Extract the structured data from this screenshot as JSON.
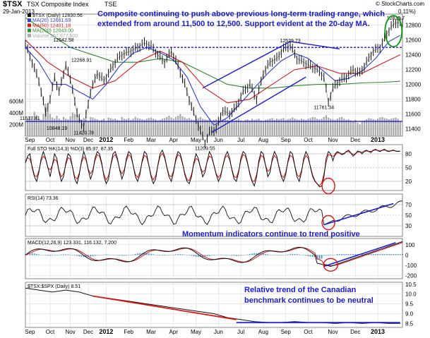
{
  "header": {
    "symbol": "$TSX",
    "name": "TSX Composite Index",
    "exchange": "TSE",
    "date": "29-Jan-2013",
    "change_frag": "0.11%)",
    "source": "© StockCharts.com"
  },
  "annotations": {
    "top_line1": "Composite continuing to push above previous long-term trading range, which",
    "top_line2": "extended from around 11,500 to 12,500.   Support evident at the 20-day MA.",
    "momentum": "Momentum indicators continue to trend positive",
    "relative_line1": "Relative trend of the Canadian",
    "relative_line2": "benchmark continues to be neutral"
  },
  "colors": {
    "price": "#111111",
    "ma20": "#2b3fcf",
    "ma50": "#d41919",
    "ma200": "#2c8a2c",
    "volume": "#a9a9a9",
    "annotation_text": "#1a1ad6",
    "support_line": "#1a1ad6",
    "trend_red": "#e01111",
    "circle_red": "#e01111",
    "circle_green": "#1c9a1c",
    "macd_hist": "#2f7fc8",
    "grid": "#d9d9d9"
  },
  "chart_data": [
    {
      "type": "line",
      "panel": "price",
      "legend": [
        {
          "label": "$TSX (Daily) 12830.56",
          "color_key": "price"
        },
        {
          "label": "MA(20) 12661.69",
          "color_key": "ma20"
        },
        {
          "label": "MA(50) 12401.18",
          "color_key": "ma50"
        },
        {
          "label": "MA(200) 12043.00",
          "color_key": "ma200"
        },
        {
          "label": "Volume 257,977,600",
          "color_key": "volume"
        }
      ],
      "y_ticks": [
        11400,
        11600,
        11800,
        12000,
        12200,
        12400,
        12600,
        12800
      ],
      "ylim": [
        11300,
        12950
      ],
      "volume_ticks": [
        "200M",
        "400M",
        "600M"
      ],
      "volume_ylim": [
        0,
        700
      ],
      "x_labels": [
        "Sep",
        "Oct",
        "Nov",
        "Dec",
        "2012",
        "Feb",
        "Mar",
        "Apr",
        "May",
        "Jun",
        "Jul",
        "Aug",
        "Sep",
        "Oct",
        "Nov",
        "Dec",
        "2013"
      ],
      "x_label_pos": [
        2,
        11,
        20,
        28,
        36,
        46,
        56,
        66,
        76,
        86,
        96,
        106,
        116,
        126,
        137,
        147,
        157
      ],
      "bold_labels": [
        "2012",
        "2013"
      ],
      "x_range": [
        0,
        168
      ],
      "price": [
        [
          0,
          12542
        ],
        [
          3,
          12300
        ],
        [
          6,
          12050
        ],
        [
          9,
          11617
        ],
        [
          11,
          11800
        ],
        [
          13,
          12100
        ],
        [
          15,
          11900
        ],
        [
          18,
          12268
        ],
        [
          21,
          11950
        ],
        [
          23,
          11600
        ],
        [
          26,
          11420
        ],
        [
          29,
          11900
        ],
        [
          32,
          12150
        ],
        [
          35,
          12050
        ],
        [
          38,
          12200
        ],
        [
          41,
          12350
        ],
        [
          44,
          12420
        ],
        [
          47,
          12450
        ],
        [
          50,
          12500
        ],
        [
          53,
          12560
        ],
        [
          56,
          12520
        ],
        [
          59,
          12400
        ],
        [
          62,
          12300
        ],
        [
          65,
          12450
        ],
        [
          68,
          12250
        ],
        [
          71,
          12000
        ],
        [
          74,
          11700
        ],
        [
          77,
          11450
        ],
        [
          80,
          11209
        ],
        [
          82,
          11350
        ],
        [
          85,
          11400
        ],
        [
          88,
          11650
        ],
        [
          91,
          11600
        ],
        [
          94,
          11700
        ],
        [
          97,
          11900
        ],
        [
          100,
          12000
        ],
        [
          103,
          11800
        ],
        [
          106,
          12150
        ],
        [
          109,
          12300
        ],
        [
          112,
          12350
        ],
        [
          115,
          12480
        ],
        [
          118,
          12529
        ],
        [
          121,
          12350
        ],
        [
          124,
          12300
        ],
        [
          127,
          12250
        ],
        [
          130,
          12200
        ],
        [
          133,
          12100
        ],
        [
          135,
          11761
        ],
        [
          137,
          11950
        ],
        [
          140,
          12050
        ],
        [
          143,
          12100
        ],
        [
          146,
          12200
        ],
        [
          149,
          12150
        ],
        [
          152,
          12300
        ],
        [
          155,
          12450
        ],
        [
          158,
          12500
        ],
        [
          161,
          12680
        ],
        [
          163,
          12780
        ],
        [
          165,
          12835
        ],
        [
          167,
          12830
        ]
      ],
      "ma20": [
        [
          0,
          12500
        ],
        [
          6,
          12300
        ],
        [
          12,
          12000
        ],
        [
          18,
          12000
        ],
        [
          24,
          11900
        ],
        [
          30,
          11800
        ],
        [
          36,
          12000
        ],
        [
          42,
          12250
        ],
        [
          48,
          12420
        ],
        [
          54,
          12500
        ],
        [
          60,
          12430
        ],
        [
          66,
          12330
        ],
        [
          72,
          12100
        ],
        [
          78,
          11700
        ],
        [
          84,
          11450
        ],
        [
          90,
          11550
        ],
        [
          96,
          11750
        ],
        [
          102,
          11950
        ],
        [
          108,
          12150
        ],
        [
          114,
          12320
        ],
        [
          120,
          12420
        ],
        [
          126,
          12350
        ],
        [
          132,
          12200
        ],
        [
          138,
          12050
        ],
        [
          144,
          12080
        ],
        [
          150,
          12180
        ],
        [
          156,
          12350
        ],
        [
          162,
          12580
        ],
        [
          167,
          12662
        ]
      ],
      "ma50": [
        [
          0,
          12600
        ],
        [
          10,
          12300
        ],
        [
          20,
          12100
        ],
        [
          30,
          11950
        ],
        [
          40,
          12050
        ],
        [
          50,
          12300
        ],
        [
          60,
          12450
        ],
        [
          70,
          12300
        ],
        [
          80,
          11950
        ],
        [
          90,
          11750
        ],
        [
          100,
          11800
        ],
        [
          110,
          12000
        ],
        [
          120,
          12200
        ],
        [
          130,
          12250
        ],
        [
          140,
          12150
        ],
        [
          150,
          12150
        ],
        [
          160,
          12300
        ],
        [
          167,
          12401
        ]
      ],
      "ma200": [
        [
          0,
          12900
        ],
        [
          10,
          12700
        ],
        [
          20,
          12500
        ],
        [
          30,
          12400
        ],
        [
          40,
          12300
        ],
        [
          50,
          12300
        ],
        [
          60,
          12350
        ],
        [
          70,
          12300
        ],
        [
          80,
          12150
        ],
        [
          90,
          12000
        ],
        [
          100,
          11950
        ],
        [
          110,
          11950
        ],
        [
          120,
          11980
        ],
        [
          130,
          12000
        ],
        [
          140,
          12000
        ],
        [
          150,
          12020
        ],
        [
          160,
          12030
        ],
        [
          167,
          12043
        ]
      ],
      "volume": [
        260,
        300,
        340,
        310,
        420,
        360,
        300,
        280,
        380,
        560,
        420,
        380,
        320,
        300,
        350,
        300,
        280,
        330,
        300,
        290,
        340,
        410,
        380,
        360,
        300,
        280,
        310,
        290,
        260,
        330,
        320,
        300,
        290,
        270,
        280,
        300,
        250,
        320,
        310,
        290,
        300,
        280,
        270,
        330,
        300,
        290,
        310,
        280,
        300,
        330,
        310,
        300,
        290,
        280,
        300,
        310,
        320,
        300,
        290,
        270,
        280,
        300,
        310,
        330,
        350,
        320,
        300,
        330,
        350,
        380,
        340,
        320,
        300,
        310,
        290,
        280,
        300,
        310,
        330,
        300,
        290,
        280,
        300,
        260,
        280,
        290,
        270,
        260,
        290,
        300,
        280,
        270,
        290,
        260,
        280,
        300,
        270,
        260,
        280,
        290,
        270,
        300,
        280,
        290,
        300,
        270,
        260,
        280,
        290,
        300,
        310,
        280,
        300,
        290,
        300,
        310,
        280,
        290,
        300,
        320,
        300,
        290,
        280,
        300,
        290,
        280,
        300,
        310,
        330,
        320,
        300,
        290,
        300,
        330,
        360,
        320,
        300,
        290,
        280,
        300,
        320,
        330,
        300,
        280,
        290,
        270,
        260,
        280,
        230,
        200,
        250,
        270,
        290,
        310,
        300,
        290,
        280,
        300,
        320,
        330,
        310,
        300,
        290,
        300,
        310,
        320,
        300,
        258
      ],
      "point_labels": [
        {
          "x": 17,
          "y": 12542,
          "text": "12542.58"
        },
        {
          "x": 25,
          "y": 12268,
          "text": "12268.91"
        },
        {
          "x": 2,
          "y": 11617,
          "text": "11617.81"
        },
        {
          "x": 26,
          "y": 11420,
          "text": "11420.78"
        },
        {
          "x": 80,
          "y": 11209,
          "text": "11209.55"
        },
        {
          "x": 118,
          "y": 12529,
          "text": "12529.73"
        },
        {
          "x": 133,
          "y": 11761,
          "text": "11761.34"
        },
        {
          "x": 165,
          "y": 12835,
          "text": "12835.7"
        }
      ],
      "volume_label": {
        "x": 14,
        "text": "10848.19"
      },
      "support_line_level": 12500,
      "resistance_line_level": 11500,
      "channel_upper": [
        [
          79,
          11950
        ],
        [
          118,
          12580
        ],
        [
          140,
          12480
        ]
      ],
      "channel_lower": [
        [
          83,
          11350
        ],
        [
          125,
          12100
        ]
      ]
    },
    {
      "type": "line",
      "panel": "stochastic",
      "legend": "Full STO %K(14,3) %D(3) 85.97, 87.35",
      "y_ticks": [
        20,
        50,
        80
      ],
      "ylim": [
        0,
        100
      ],
      "x_labels": [],
      "k_values": [
        60,
        75,
        80,
        50,
        30,
        20,
        40,
        70,
        85,
        70,
        50,
        30,
        55,
        80,
        70,
        40,
        20,
        30,
        60,
        80,
        75,
        50,
        25,
        15,
        35,
        65,
        85,
        70,
        45,
        25,
        40,
        70,
        85,
        80,
        60,
        30,
        15,
        25,
        55,
        80,
        85,
        70,
        45,
        25,
        40,
        70,
        85,
        80,
        55,
        30,
        20,
        35,
        65,
        85,
        80,
        55,
        30,
        15,
        25,
        55,
        80,
        88,
        75,
        50,
        30,
        20,
        40,
        70,
        85,
        80,
        60,
        35,
        20,
        15,
        30,
        60,
        80,
        70,
        50,
        30,
        40,
        65,
        85,
        75,
        55,
        35,
        20,
        30,
        55,
        75,
        85,
        70,
        45,
        25,
        20,
        40,
        70,
        85,
        80,
        60,
        35,
        20,
        10,
        30,
        65,
        85,
        80,
        55,
        30,
        40,
        70,
        85,
        75,
        50,
        30,
        20,
        35,
        65,
        85,
        80,
        55,
        30,
        20,
        40,
        70,
        85,
        75,
        50,
        30,
        20,
        15,
        8,
        10,
        30,
        70,
        85,
        80,
        65,
        80,
        85,
        82,
        78,
        80,
        85,
        88,
        82,
        75,
        80,
        86,
        85,
        80,
        86,
        88,
        85,
        83,
        88,
        90,
        87,
        85,
        88,
        90,
        86,
        85,
        87,
        88,
        86,
        85,
        86
      ],
      "circle_x": 135
    },
    {
      "type": "line",
      "panel": "rsi",
      "legend": "RSI(14) 73.36",
      "y_ticks": [
        30,
        50,
        70
      ],
      "ylim": [
        10,
        90
      ],
      "trend_line": [
        [
          133,
          32
        ],
        [
          164,
          72
        ]
      ],
      "circle_x": 135
    },
    {
      "type": "line",
      "panel": "macd",
      "legend": "MACD(12,26,9) 123.331, 116.132, 7.200",
      "y_ticks": [
        100,
        0,
        -100,
        -200
      ],
      "ylim": [
        -230,
        160
      ],
      "trend_line": [
        [
          133,
          -110
        ],
        [
          165,
          120
        ]
      ],
      "circle_x": 136
    },
    {
      "type": "line",
      "panel": "ratio",
      "legend": "$TSX:$SPX (Daily) 8.51",
      "y_ticks": [
        10.5,
        10.0,
        9.5,
        9.0,
        8.5
      ],
      "ylim": [
        8.3,
        10.6
      ],
      "values": [
        [
          0,
          10.3
        ],
        [
          6,
          10.2
        ],
        [
          12,
          10.1
        ],
        [
          18,
          10.2
        ],
        [
          24,
          10.1
        ],
        [
          30,
          9.9
        ],
        [
          36,
          9.8
        ],
        [
          42,
          9.7
        ],
        [
          48,
          9.6
        ],
        [
          54,
          9.5
        ],
        [
          60,
          9.4
        ],
        [
          66,
          9.3
        ],
        [
          72,
          9.2
        ],
        [
          78,
          9.1
        ],
        [
          84,
          9.0
        ],
        [
          90,
          8.8
        ],
        [
          96,
          8.7
        ],
        [
          102,
          8.6
        ],
        [
          108,
          8.55
        ],
        [
          114,
          8.55
        ],
        [
          120,
          8.6
        ],
        [
          126,
          8.55
        ],
        [
          132,
          8.55
        ],
        [
          138,
          8.5
        ],
        [
          144,
          8.55
        ],
        [
          150,
          8.5
        ],
        [
          156,
          8.55
        ],
        [
          162,
          8.5
        ],
        [
          167,
          8.51
        ]
      ],
      "trend_line": [
        [
          30,
          9.9
        ],
        [
          94,
          8.7
        ]
      ]
    }
  ]
}
